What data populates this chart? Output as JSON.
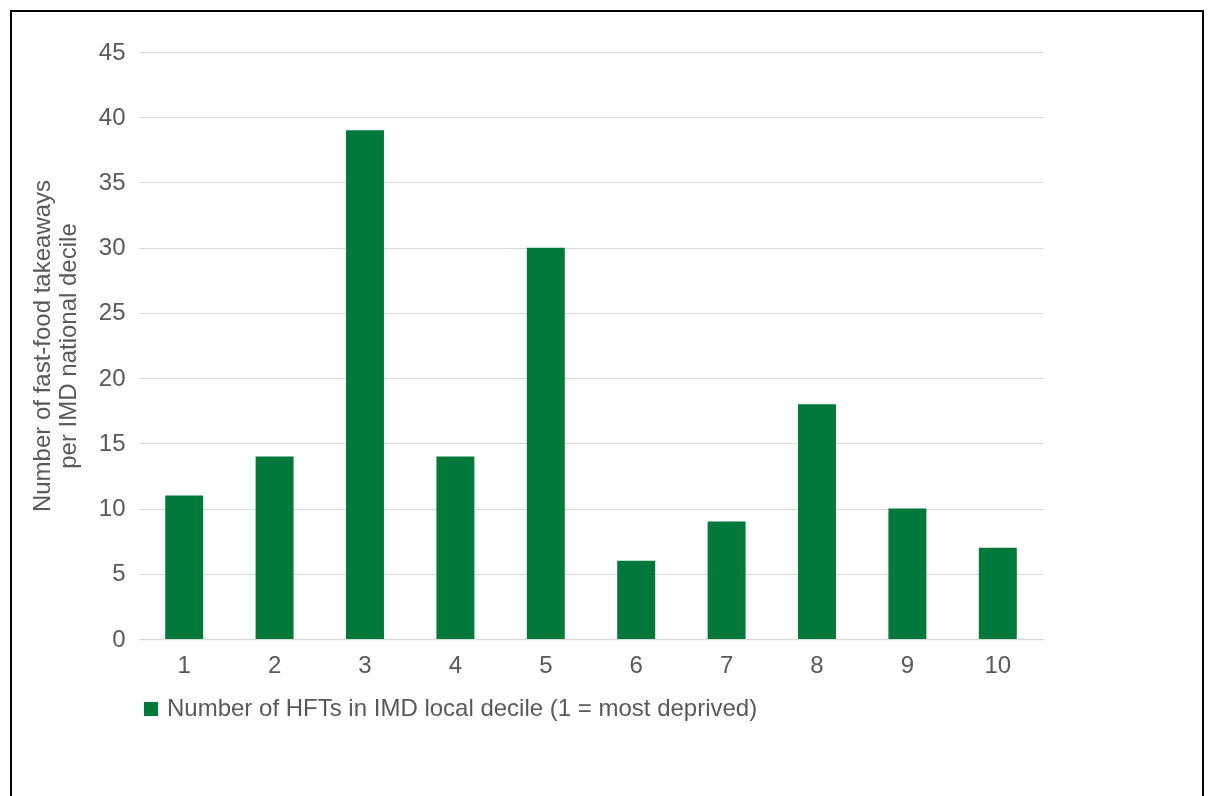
{
  "chart_data": {
    "type": "bar",
    "ylabel": "Number of fast-food takeaways per IMD national decile",
    "categories": [
      "1",
      "2",
      "3",
      "4",
      "5",
      "6",
      "7",
      "8",
      "9",
      "10"
    ],
    "series": [
      {
        "name": "Number of HFTs in IMD local decile (1 = most deprived)",
        "color": "#00793a",
        "values": [
          11,
          14,
          39,
          14,
          30,
          6,
          9,
          18,
          10,
          7
        ]
      }
    ],
    "ylim": [
      0,
      45
    ],
    "yticks": [
      0,
      5,
      10,
      15,
      20,
      25,
      30,
      35,
      40,
      45
    ],
    "grid": "y",
    "legend": "bottom"
  }
}
